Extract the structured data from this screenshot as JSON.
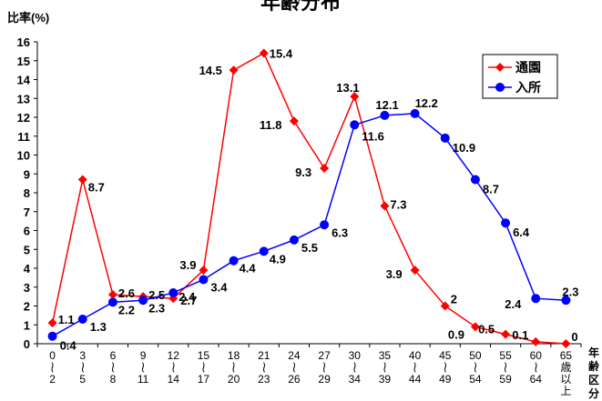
{
  "chart_data": {
    "type": "line",
    "title": "年齢分布",
    "ylabel": "比率(%)",
    "xlabel": "年齢区分",
    "ylim": [
      0,
      16
    ],
    "yticks": [
      0,
      1,
      2,
      3,
      4,
      5,
      6,
      7,
      8,
      9,
      10,
      11,
      12,
      13,
      14,
      15,
      16
    ],
    "grid": false,
    "legend_position": "top-right",
    "categories": [
      [
        "0",
        "~",
        "2"
      ],
      [
        "3",
        "~",
        "5"
      ],
      [
        "6",
        "~",
        "8"
      ],
      [
        "9",
        "~",
        "11"
      ],
      [
        "12",
        "~",
        "14"
      ],
      [
        "15",
        "~",
        "17"
      ],
      [
        "18",
        "~",
        "20"
      ],
      [
        "21",
        "~",
        "23"
      ],
      [
        "24",
        "~",
        "26"
      ],
      [
        "27",
        "~",
        "29"
      ],
      [
        "30",
        "~",
        "34"
      ],
      [
        "35",
        "~",
        "39"
      ],
      [
        "40",
        "~",
        "44"
      ],
      [
        "45",
        "~",
        "49"
      ],
      [
        "50",
        "~",
        "54"
      ],
      [
        "55",
        "~",
        "59"
      ],
      [
        "60",
        "~",
        "64"
      ],
      [
        "65",
        "歳",
        "以",
        "上"
      ]
    ],
    "series": [
      {
        "name": "通園",
        "color": "#ff0000",
        "marker": "diamond",
        "values": [
          1.1,
          8.7,
          2.6,
          2.5,
          2.4,
          3.9,
          14.5,
          15.4,
          11.8,
          9.3,
          13.1,
          7.3,
          3.9,
          2,
          0.9,
          0.5,
          0.1,
          0
        ],
        "labels": [
          "1.1",
          "8.7",
          "2.6",
          "2.5",
          "2.4",
          "3.9",
          "14.5",
          "15.4",
          "11.8",
          "9.3",
          "13.1",
          "7.3",
          "3.9",
          "2",
          "0.9",
          "0.5",
          "0.1",
          "0"
        ]
      },
      {
        "name": "入所",
        "color": "#0000ff",
        "marker": "circle",
        "values": [
          0.4,
          1.3,
          2.2,
          2.3,
          2.7,
          3.4,
          4.4,
          4.9,
          5.5,
          6.3,
          11.6,
          12.1,
          12.2,
          10.9,
          8.7,
          6.4,
          2.4,
          2.3
        ],
        "labels": [
          "0.4",
          "1.3",
          "2.2",
          "2.3",
          "2.7",
          "3.4",
          "4.4",
          "4.9",
          "5.5",
          "6.3",
          "11.6",
          "12.1",
          "12.2",
          "10.9",
          "8.7",
          "6.4",
          "2.4",
          "2.3"
        ]
      }
    ]
  }
}
